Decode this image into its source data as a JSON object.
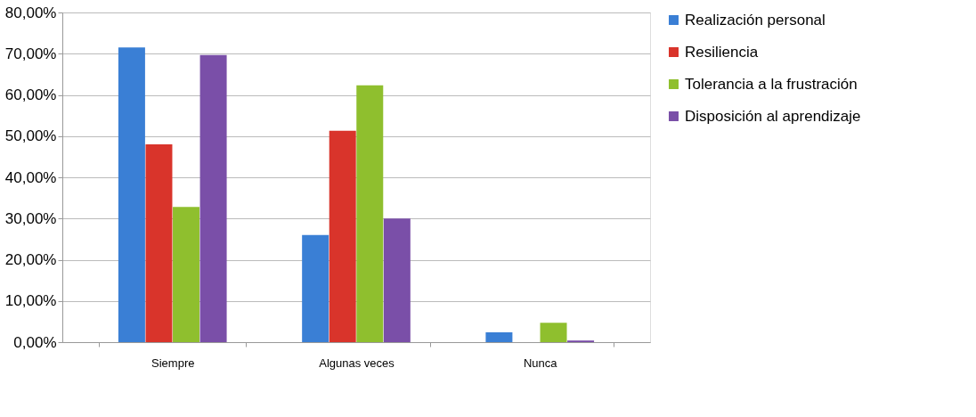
{
  "chart_data": {
    "type": "bar",
    "categories": [
      "Siempre",
      "Algunas veces",
      "Nunca"
    ],
    "series": [
      {
        "name": "Realización personal",
        "color": "#3a7fd5",
        "values": [
          71.5,
          26,
          2.4
        ]
      },
      {
        "name": "Resiliencia",
        "color": "#d9342b",
        "values": [
          48,
          51.3,
          0
        ]
      },
      {
        "name": "Tolerancia a la frustración",
        "color": "#8fbf2e",
        "values": [
          32.8,
          62.3,
          4.7
        ]
      },
      {
        "name": "Disposición al aprendizaje",
        "color": "#7a4fa8",
        "values": [
          69.7,
          30,
          0.4
        ]
      }
    ],
    "ylim": [
      0,
      80
    ],
    "yticks": [
      {
        "value": 0,
        "label": "0,00%"
      },
      {
        "value": 10,
        "label": "10,00%"
      },
      {
        "value": 20,
        "label": "20,00%"
      },
      {
        "value": 30,
        "label": "30,00%"
      },
      {
        "value": 40,
        "label": "40,00%"
      },
      {
        "value": 50,
        "label": "50,00%"
      },
      {
        "value": 60,
        "label": "60,00%"
      },
      {
        "value": 70,
        "label": "70,00%"
      },
      {
        "value": 80,
        "label": "80,00%"
      }
    ],
    "grid": "y",
    "legend": "right"
  }
}
